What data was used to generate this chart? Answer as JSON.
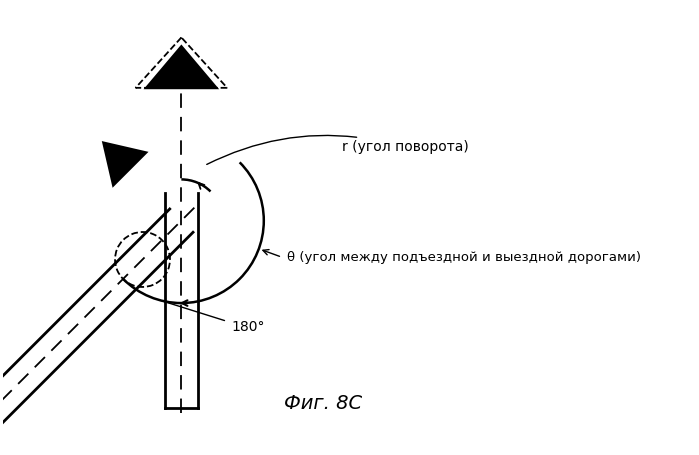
{
  "title": "Фиг. 8C",
  "label_r": "r (угол поворота)",
  "label_theta": "θ (угол между подъездной и выездной дорогами)",
  "label_180": "180°",
  "bg_color": "#ffffff",
  "line_color": "#000000"
}
